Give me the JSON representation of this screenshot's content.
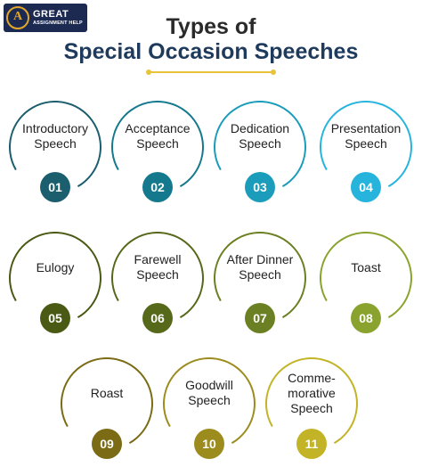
{
  "logo": {
    "mark": "A",
    "line1": "GREAT",
    "line2": "ASSIGNMENT HELP"
  },
  "title": {
    "line1": "Types of",
    "line2": "Special Occasion Speeches"
  },
  "items": [
    {
      "number": "01",
      "label": "Introductory Speech",
      "color": "#1b5e6e"
    },
    {
      "number": "02",
      "label": "Acceptance Speech",
      "color": "#15798e"
    },
    {
      "number": "03",
      "label": "Dedication Speech",
      "color": "#1a9cba"
    },
    {
      "number": "04",
      "label": "Presentation Speech",
      "color": "#27b4dc"
    },
    {
      "number": "05",
      "label": "Eulogy",
      "color": "#4a5a14"
    },
    {
      "number": "06",
      "label": "Farewell Speech",
      "color": "#56691a"
    },
    {
      "number": "07",
      "label": "After Dinner Speech",
      "color": "#6b8022"
    },
    {
      "number": "08",
      "label": "Toast",
      "color": "#89a32e"
    },
    {
      "number": "09",
      "label": "Roast",
      "color": "#7a6b14"
    },
    {
      "number": "10",
      "label": "Goodwill Speech",
      "color": "#9c8c1e"
    },
    {
      "number": "11",
      "label": "Comme-morative Speech",
      "color": "#c2b426"
    }
  ]
}
